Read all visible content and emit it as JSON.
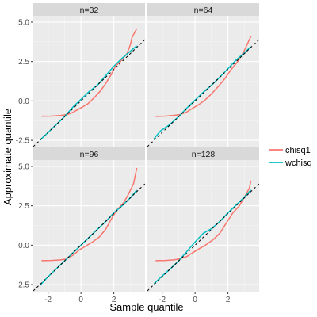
{
  "chart_data": {
    "type": "line",
    "xlabel": "Sample quantile",
    "ylabel": "Approximate quantile",
    "xlim": [
      -2.9,
      3.9
    ],
    "ylim": [
      -2.95,
      5.4
    ],
    "x_ticks": [
      -2,
      0,
      2
    ],
    "x_tick_labels": [
      "-2",
      "0",
      "2"
    ],
    "y_ticks": [
      -2.5,
      0,
      2.5,
      5
    ],
    "y_tick_labels": [
      "-2.5",
      "0.0",
      "2.5",
      "5.0"
    ],
    "grid": true,
    "legend_position": "right",
    "reference_line": {
      "slope": 1,
      "intercept": 0,
      "style": "dashed",
      "color": "#000000"
    },
    "series": [
      {
        "name": "chisq1",
        "color": "#F8766D"
      },
      {
        "name": "wchisq",
        "color": "#00BFC4"
      }
    ],
    "panels": [
      {
        "title": "n=32",
        "series": [
          {
            "name": "chisq1",
            "points": [
              [
                -2.4,
                -0.97
              ],
              [
                -1.8,
                -0.96
              ],
              [
                -1.2,
                -0.92
              ],
              [
                -0.8,
                -0.85
              ],
              [
                -0.5,
                -0.73
              ],
              [
                -0.2,
                -0.55
              ],
              [
                0.1,
                -0.38
              ],
              [
                0.4,
                -0.2
              ],
              [
                0.8,
                0.2
              ],
              [
                1.2,
                0.65
              ],
              [
                1.5,
                1.1
              ],
              [
                1.8,
                1.6
              ],
              [
                2.1,
                2.2
              ],
              [
                2.4,
                2.5
              ],
              [
                2.8,
                3.0
              ],
              [
                3.0,
                3.55
              ],
              [
                3.1,
                4.0
              ],
              [
                3.4,
                4.6
              ]
            ]
          },
          {
            "name": "wchisq",
            "points": [
              [
                -2.5,
                -2.5
              ],
              [
                -2.0,
                -2.0
              ],
              [
                -1.5,
                -1.5
              ],
              [
                -1.0,
                -1.0
              ],
              [
                -0.5,
                -0.4
              ],
              [
                0.0,
                0.1
              ],
              [
                0.5,
                0.6
              ],
              [
                1.0,
                1.0
              ],
              [
                1.5,
                1.6
              ],
              [
                2.0,
                2.2
              ],
              [
                2.5,
                2.7
              ],
              [
                3.0,
                3.15
              ],
              [
                3.4,
                3.5
              ]
            ]
          }
        ]
      },
      {
        "title": "n=64",
        "series": [
          {
            "name": "chisq1",
            "points": [
              [
                -2.4,
                -0.98
              ],
              [
                -1.8,
                -0.96
              ],
              [
                -1.3,
                -0.92
              ],
              [
                -0.9,
                -0.86
              ],
              [
                -0.5,
                -0.7
              ],
              [
                -0.2,
                -0.5
              ],
              [
                0.2,
                -0.25
              ],
              [
                0.6,
                0.05
              ],
              [
                1.0,
                0.45
              ],
              [
                1.4,
                0.9
              ],
              [
                1.8,
                1.4
              ],
              [
                2.2,
                2.0
              ],
              [
                2.6,
                2.5
              ],
              [
                3.0,
                3.2
              ],
              [
                3.4,
                4.1
              ]
            ]
          },
          {
            "name": "wchisq",
            "points": [
              [
                -2.5,
                -2.4
              ],
              [
                -2.1,
                -1.9
              ],
              [
                -1.6,
                -1.55
              ],
              [
                -1.0,
                -1.0
              ],
              [
                -0.5,
                -0.45
              ],
              [
                0.0,
                0.05
              ],
              [
                0.5,
                0.55
              ],
              [
                1.0,
                1.0
              ],
              [
                1.5,
                1.5
              ],
              [
                2.0,
                2.05
              ],
              [
                2.5,
                2.6
              ],
              [
                3.0,
                3.05
              ],
              [
                3.4,
                3.45
              ]
            ]
          }
        ]
      },
      {
        "title": "n=96",
        "series": [
          {
            "name": "chisq1",
            "points": [
              [
                -2.4,
                -0.98
              ],
              [
                -1.8,
                -0.97
              ],
              [
                -1.3,
                -0.94
              ],
              [
                -0.9,
                -0.88
              ],
              [
                -0.5,
                -0.65
              ],
              [
                -0.1,
                -0.3
              ],
              [
                0.3,
                -0.05
              ],
              [
                0.7,
                0.2
              ],
              [
                1.1,
                0.5
              ],
              [
                1.5,
                1.0
              ],
              [
                1.9,
                1.75
              ],
              [
                2.2,
                2.25
              ],
              [
                2.6,
                2.7
              ],
              [
                2.9,
                3.25
              ],
              [
                3.2,
                3.9
              ],
              [
                3.4,
                4.9
              ]
            ]
          },
          {
            "name": "wchisq",
            "points": [
              [
                -2.5,
                -2.55
              ],
              [
                -2.0,
                -2.0
              ],
              [
                -1.5,
                -1.5
              ],
              [
                -1.0,
                -1.0
              ],
              [
                -0.5,
                -0.5
              ],
              [
                0.0,
                0.0
              ],
              [
                0.5,
                0.5
              ],
              [
                1.0,
                1.0
              ],
              [
                1.5,
                1.5
              ],
              [
                2.0,
                2.05
              ],
              [
                2.5,
                2.5
              ],
              [
                3.0,
                3.0
              ],
              [
                3.4,
                3.5
              ]
            ]
          }
        ]
      },
      {
        "title": "n=128",
        "series": [
          {
            "name": "chisq1",
            "points": [
              [
                -2.4,
                -0.98
              ],
              [
                -1.8,
                -0.97
              ],
              [
                -1.3,
                -0.93
              ],
              [
                -0.9,
                -0.86
              ],
              [
                -0.5,
                -0.72
              ],
              [
                -0.1,
                -0.45
              ],
              [
                0.3,
                -0.2
              ],
              [
                0.7,
                0.05
              ],
              [
                1.1,
                0.35
              ],
              [
                1.5,
                0.75
              ],
              [
                1.9,
                1.4
              ],
              [
                2.3,
                2.05
              ],
              [
                2.7,
                2.5
              ],
              [
                3.0,
                3.05
              ],
              [
                3.3,
                3.6
              ],
              [
                3.4,
                4.1
              ]
            ]
          },
          {
            "name": "wchisq",
            "points": [
              [
                -2.5,
                -2.45
              ],
              [
                -2.0,
                -1.95
              ],
              [
                -1.5,
                -1.5
              ],
              [
                -1.0,
                -1.0
              ],
              [
                -0.5,
                -0.4
              ],
              [
                0.0,
                0.2
              ],
              [
                0.5,
                0.75
              ],
              [
                1.0,
                1.05
              ],
              [
                1.5,
                1.5
              ],
              [
                2.0,
                2.05
              ],
              [
                2.5,
                2.55
              ],
              [
                3.0,
                3.05
              ],
              [
                3.4,
                3.5
              ]
            ]
          }
        ]
      }
    ]
  }
}
